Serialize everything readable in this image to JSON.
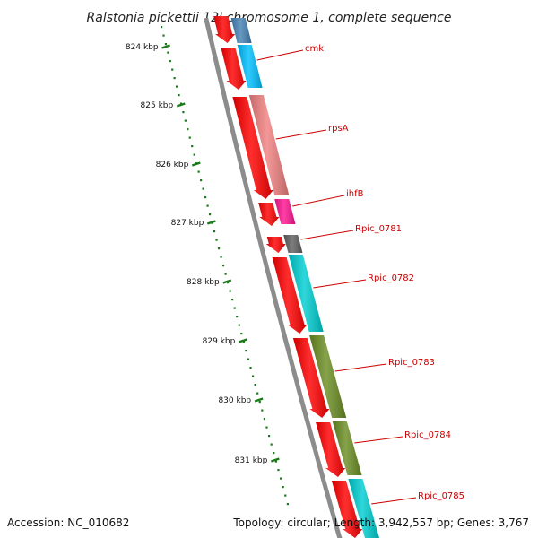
{
  "title": "Ralstonia pickettii 12J chromosome 1, complete sequence",
  "footer": {
    "accession": "Accession: NC_010682",
    "summary": "Topology: circular; Length: 3,942,557 bp; Genes: 3,767"
  },
  "ticks": [
    {
      "label": "824 kbp"
    },
    {
      "label": "825 kbp"
    },
    {
      "label": "826 kbp"
    },
    {
      "label": "827 kbp"
    },
    {
      "label": "828 kbp"
    },
    {
      "label": "829 kbp"
    },
    {
      "label": "830 kbp"
    },
    {
      "label": "831 kbp"
    }
  ],
  "genes": [
    {
      "label": "cmk",
      "color": "#00bfff"
    },
    {
      "label": "rpsA",
      "color": "#f08080"
    },
    {
      "label": "ihfB",
      "color": "#ff1493"
    },
    {
      "label": "Rpic_0781",
      "color": "#606060"
    },
    {
      "label": "Rpic_0782",
      "color": "#00ced1"
    },
    {
      "label": "Rpic_0783",
      "color": "#6b8e23"
    },
    {
      "label": "Rpic_0784",
      "color": "#6b8e23"
    },
    {
      "label": "Rpic_0785",
      "color": "#00ced1"
    }
  ],
  "colors": {
    "cds": "#ff0000",
    "backbone": "#8c8c8c",
    "ticks": "#1a7a1a",
    "label_line": "#cc0000",
    "top_partial_gene": "#4682b4"
  }
}
